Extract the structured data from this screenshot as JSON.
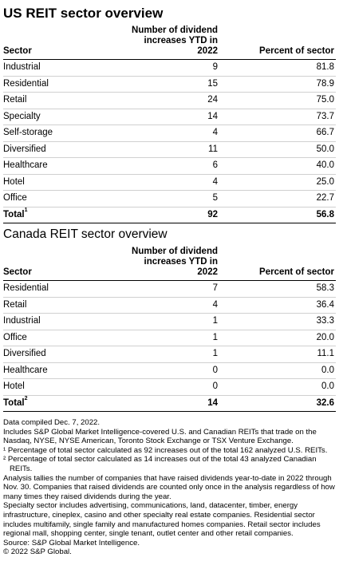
{
  "us": {
    "title": "US REIT sector overview",
    "headers": {
      "sector": "Sector",
      "increases": "Number of dividend increases YTD in 2022",
      "percent": "Percent of sector"
    },
    "rows": [
      {
        "sector": "Industrial",
        "increases": "9",
        "percent": "81.8"
      },
      {
        "sector": "Residential",
        "increases": "15",
        "percent": "78.9"
      },
      {
        "sector": "Retail",
        "increases": "24",
        "percent": "75.0"
      },
      {
        "sector": "Specialty",
        "increases": "14",
        "percent": "73.7"
      },
      {
        "sector": "Self-storage",
        "increases": "4",
        "percent": "66.7"
      },
      {
        "sector": "Diversified",
        "increases": "11",
        "percent": "50.0"
      },
      {
        "sector": "Healthcare",
        "increases": "6",
        "percent": "40.0"
      },
      {
        "sector": "Hotel",
        "increases": "4",
        "percent": "25.0"
      },
      {
        "sector": "Office",
        "increases": "5",
        "percent": "22.7"
      }
    ],
    "total": {
      "label": "Total",
      "sup": "1",
      "increases": "92",
      "percent": "56.8"
    }
  },
  "canada": {
    "title": "Canada REIT sector overview",
    "headers": {
      "sector": "Sector",
      "increases": "Number of dividend increases YTD in 2022",
      "percent": "Percent of sector"
    },
    "rows": [
      {
        "sector": "Residential",
        "increases": "7",
        "percent": "58.3"
      },
      {
        "sector": "Retail",
        "increases": "4",
        "percent": "36.4"
      },
      {
        "sector": "Industrial",
        "increases": "1",
        "percent": "33.3"
      },
      {
        "sector": "Office",
        "increases": "1",
        "percent": "20.0"
      },
      {
        "sector": "Diversified",
        "increases": "1",
        "percent": "11.1"
      },
      {
        "sector": "Healthcare",
        "increases": "0",
        "percent": "0.0"
      },
      {
        "sector": "Hotel",
        "increases": "0",
        "percent": "0.0"
      }
    ],
    "total": {
      "label": "Total",
      "sup": "2",
      "increases": "14",
      "percent": "32.6"
    }
  },
  "notes": {
    "compiled": "Data compiled Dec. 7, 2022.",
    "includes": "Includes S&P Global Market Intelligence-covered U.S. and Canadian REITs that trade on the Nasdaq, NYSE, NYSE American, Toronto Stock Exchange or TSX Venture Exchange.",
    "fn1_mark": "¹",
    "fn1": "Percentage of total sector calculated as 92 increases out of the total 162 analyzed U.S. REITs.",
    "fn2_mark": "²",
    "fn2": "Percentage of total sector calculated as 14 increases out of the total 43 analyzed Canadian REITs.",
    "analysis": "Analysis tallies the number of companies that have raised dividends year-to-date in 2022 through Nov. 30. Companies that raised dividends are counted only once in the analysis regardless of how many times they raised dividends during the year.",
    "specialty": "Specialty sector includes advertising, communications, land, datacenter, timber, energy infrastructure, cineplex, casino and other specialty real estate companies. Residential sector includes multifamily, single family and manufactured homes companies. Retail sector includes regional mall, shopping center, single tenant, outlet center and other retail companies.",
    "source": "Source: S&P Global Market Intelligence.",
    "copyright": "© 2022 S&P Global."
  }
}
